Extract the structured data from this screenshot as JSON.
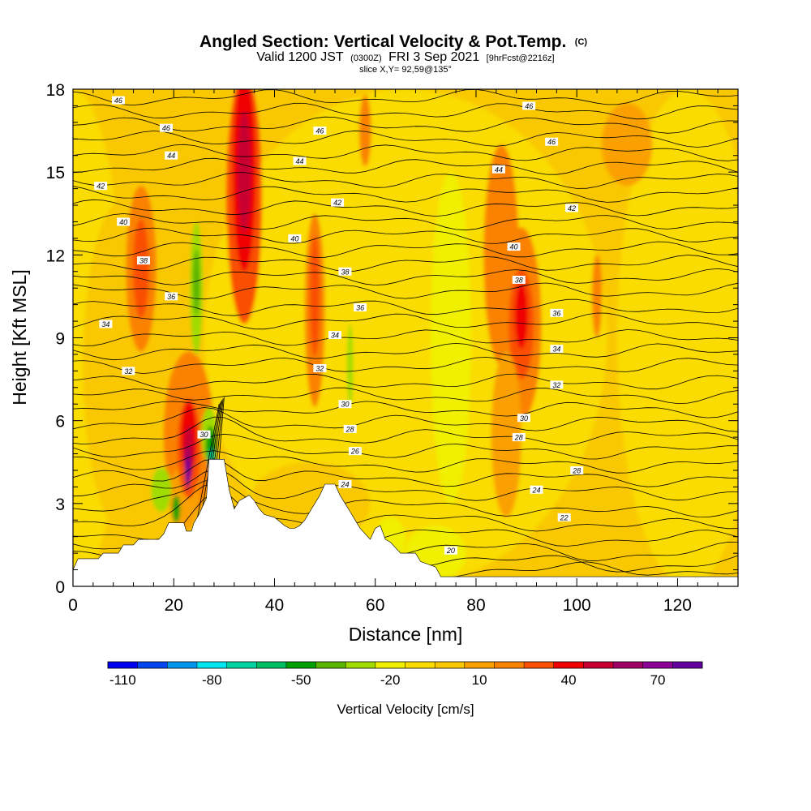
{
  "title": {
    "main": "Angled Section: Vertical Velocity & Pot.Temp.",
    "main_suffix": "(C)",
    "valid_prefix": "Valid 1200 JST",
    "valid_utc": "(0300Z)",
    "valid_date": "FRI 3 Sep 2021",
    "forecast_tag": "[9hrFcst@2216z]",
    "slice": "slice X,Y= 92,59@135°"
  },
  "colorbar": {
    "label": "Vertical Velocity [cm/s]",
    "tick_labels": [
      "-110",
      "-80",
      "-50",
      "-20",
      "10",
      "40",
      "70"
    ],
    "colors": [
      "#0000f0",
      "#0046f0",
      "#0096f0",
      "#00e6f0",
      "#00d2a0",
      "#00be64",
      "#00a000",
      "#5ab400",
      "#a0dc00",
      "#f0f000",
      "#fadc00",
      "#fac800",
      "#faa000",
      "#fa8200",
      "#fa5000",
      "#f00000",
      "#c80032",
      "#a00064",
      "#8c0096",
      "#6400a0"
    ]
  },
  "chart_data": {
    "type": "heatmap",
    "xlabel": "Distance [nm]",
    "ylabel": "Height [Kft MSL]",
    "xlim": [
      0,
      132
    ],
    "ylim": [
      0,
      18
    ],
    "xticks": [
      0,
      20,
      40,
      60,
      80,
      100,
      120
    ],
    "yticks": [
      0,
      3,
      6,
      9,
      12,
      15,
      18
    ],
    "fill_variable": "Vertical Velocity [cm/s]",
    "fill_levels": [
      -110,
      -100,
      -90,
      -80,
      -70,
      -60,
      -50,
      -40,
      -30,
      -20,
      -10,
      0,
      10,
      20,
      30,
      40,
      50,
      60,
      70,
      80
    ],
    "contour_variable": "Potential Temperature (C)",
    "contour_levels": [
      20,
      22,
      24,
      26,
      28,
      30,
      32,
      34,
      36,
      38,
      40,
      42,
      44,
      46
    ],
    "contour_labels": [
      {
        "text": "46",
        "x": 9,
        "y": 17.6
      },
      {
        "text": "46",
        "x": 18.5,
        "y": 16.6
      },
      {
        "text": "46",
        "x": 49,
        "y": 16.5
      },
      {
        "text": "46",
        "x": 90.5,
        "y": 17.4
      },
      {
        "text": "46",
        "x": 95,
        "y": 16.1
      },
      {
        "text": "44",
        "x": 19.5,
        "y": 15.6
      },
      {
        "text": "44",
        "x": 45,
        "y": 15.4
      },
      {
        "text": "44",
        "x": 84.5,
        "y": 15.1
      },
      {
        "text": "42",
        "x": 5.5,
        "y": 14.5
      },
      {
        "text": "42",
        "x": 52.5,
        "y": 13.9
      },
      {
        "text": "42",
        "x": 99,
        "y": 13.7
      },
      {
        "text": "40",
        "x": 10,
        "y": 13.2
      },
      {
        "text": "40",
        "x": 44,
        "y": 12.6
      },
      {
        "text": "40",
        "x": 87.5,
        "y": 12.3
      },
      {
        "text": "38",
        "x": 14,
        "y": 11.8
      },
      {
        "text": "38",
        "x": 54,
        "y": 11.4
      },
      {
        "text": "38",
        "x": 88.5,
        "y": 11.1
      },
      {
        "text": "36",
        "x": 19.5,
        "y": 10.5
      },
      {
        "text": "36",
        "x": 57,
        "y": 10.1
      },
      {
        "text": "36",
        "x": 96,
        "y": 9.9
      },
      {
        "text": "34",
        "x": 6.5,
        "y": 9.5
      },
      {
        "text": "34",
        "x": 52,
        "y": 9.1
      },
      {
        "text": "34",
        "x": 96,
        "y": 8.6
      },
      {
        "text": "32",
        "x": 11,
        "y": 7.8
      },
      {
        "text": "32",
        "x": 49,
        "y": 7.9
      },
      {
        "text": "32",
        "x": 96,
        "y": 7.3
      },
      {
        "text": "30",
        "x": 26,
        "y": 5.5
      },
      {
        "text": "30",
        "x": 54,
        "y": 6.6
      },
      {
        "text": "30",
        "x": 89.5,
        "y": 6.1
      },
      {
        "text": "28",
        "x": 55,
        "y": 5.7
      },
      {
        "text": "28",
        "x": 88.5,
        "y": 5.4
      },
      {
        "text": "28",
        "x": 100,
        "y": 4.2
      },
      {
        "text": "26",
        "x": 56,
        "y": 4.9
      },
      {
        "text": "24",
        "x": 54,
        "y": 3.7
      },
      {
        "text": "24",
        "x": 92,
        "y": 3.5
      },
      {
        "text": "22",
        "x": 97.5,
        "y": 2.5
      },
      {
        "text": "20",
        "x": 75,
        "y": 1.3
      }
    ],
    "updraft_maxima_cm_s": [
      {
        "x": 23,
        "y": 4.5,
        "value": 80
      },
      {
        "x": 34,
        "y": 15,
        "value": 50
      },
      {
        "x": 89,
        "y": 9.5,
        "value": 40
      },
      {
        "x": 13.5,
        "y": 11.5,
        "value": 30
      }
    ],
    "downdraft_minima_cm_s": [
      {
        "x": 27.5,
        "y": 5,
        "value": -60
      },
      {
        "x": 24.5,
        "y": 10.5,
        "value": -20
      }
    ],
    "terrain_kft": {
      "x": [
        0,
        1,
        5,
        6,
        9,
        10,
        12,
        13,
        17,
        18,
        18.5,
        19,
        20,
        22,
        22.5,
        23.5,
        24,
        25,
        26.5,
        27,
        30,
        31,
        32,
        33,
        35,
        36,
        37,
        38,
        40,
        42,
        43,
        44,
        45,
        46,
        47,
        48,
        49,
        50,
        52,
        53,
        54,
        55,
        56,
        57,
        58,
        59,
        60,
        61,
        62,
        63,
        64,
        65,
        68,
        69,
        72,
        73,
        132
      ],
      "top": [
        0.6,
        1,
        1,
        1.2,
        1.2,
        1.5,
        1.5,
        1.7,
        1.7,
        1.9,
        2.1,
        2.3,
        2.3,
        2.3,
        2,
        2,
        2.3,
        2.6,
        3.2,
        4.6,
        4.6,
        3.5,
        2.8,
        3.1,
        3.3,
        3.1,
        2.8,
        2.6,
        2.5,
        2.2,
        2.1,
        2.1,
        2.2,
        2.4,
        2.7,
        3,
        3.3,
        3.7,
        3.7,
        3.3,
        3,
        2.7,
        2.4,
        2.1,
        1.9,
        1.7,
        2.1,
        2.2,
        1.7,
        1.6,
        1.4,
        1.2,
        1.2,
        0.9,
        0.7,
        0.35,
        0.35
      ]
    }
  }
}
